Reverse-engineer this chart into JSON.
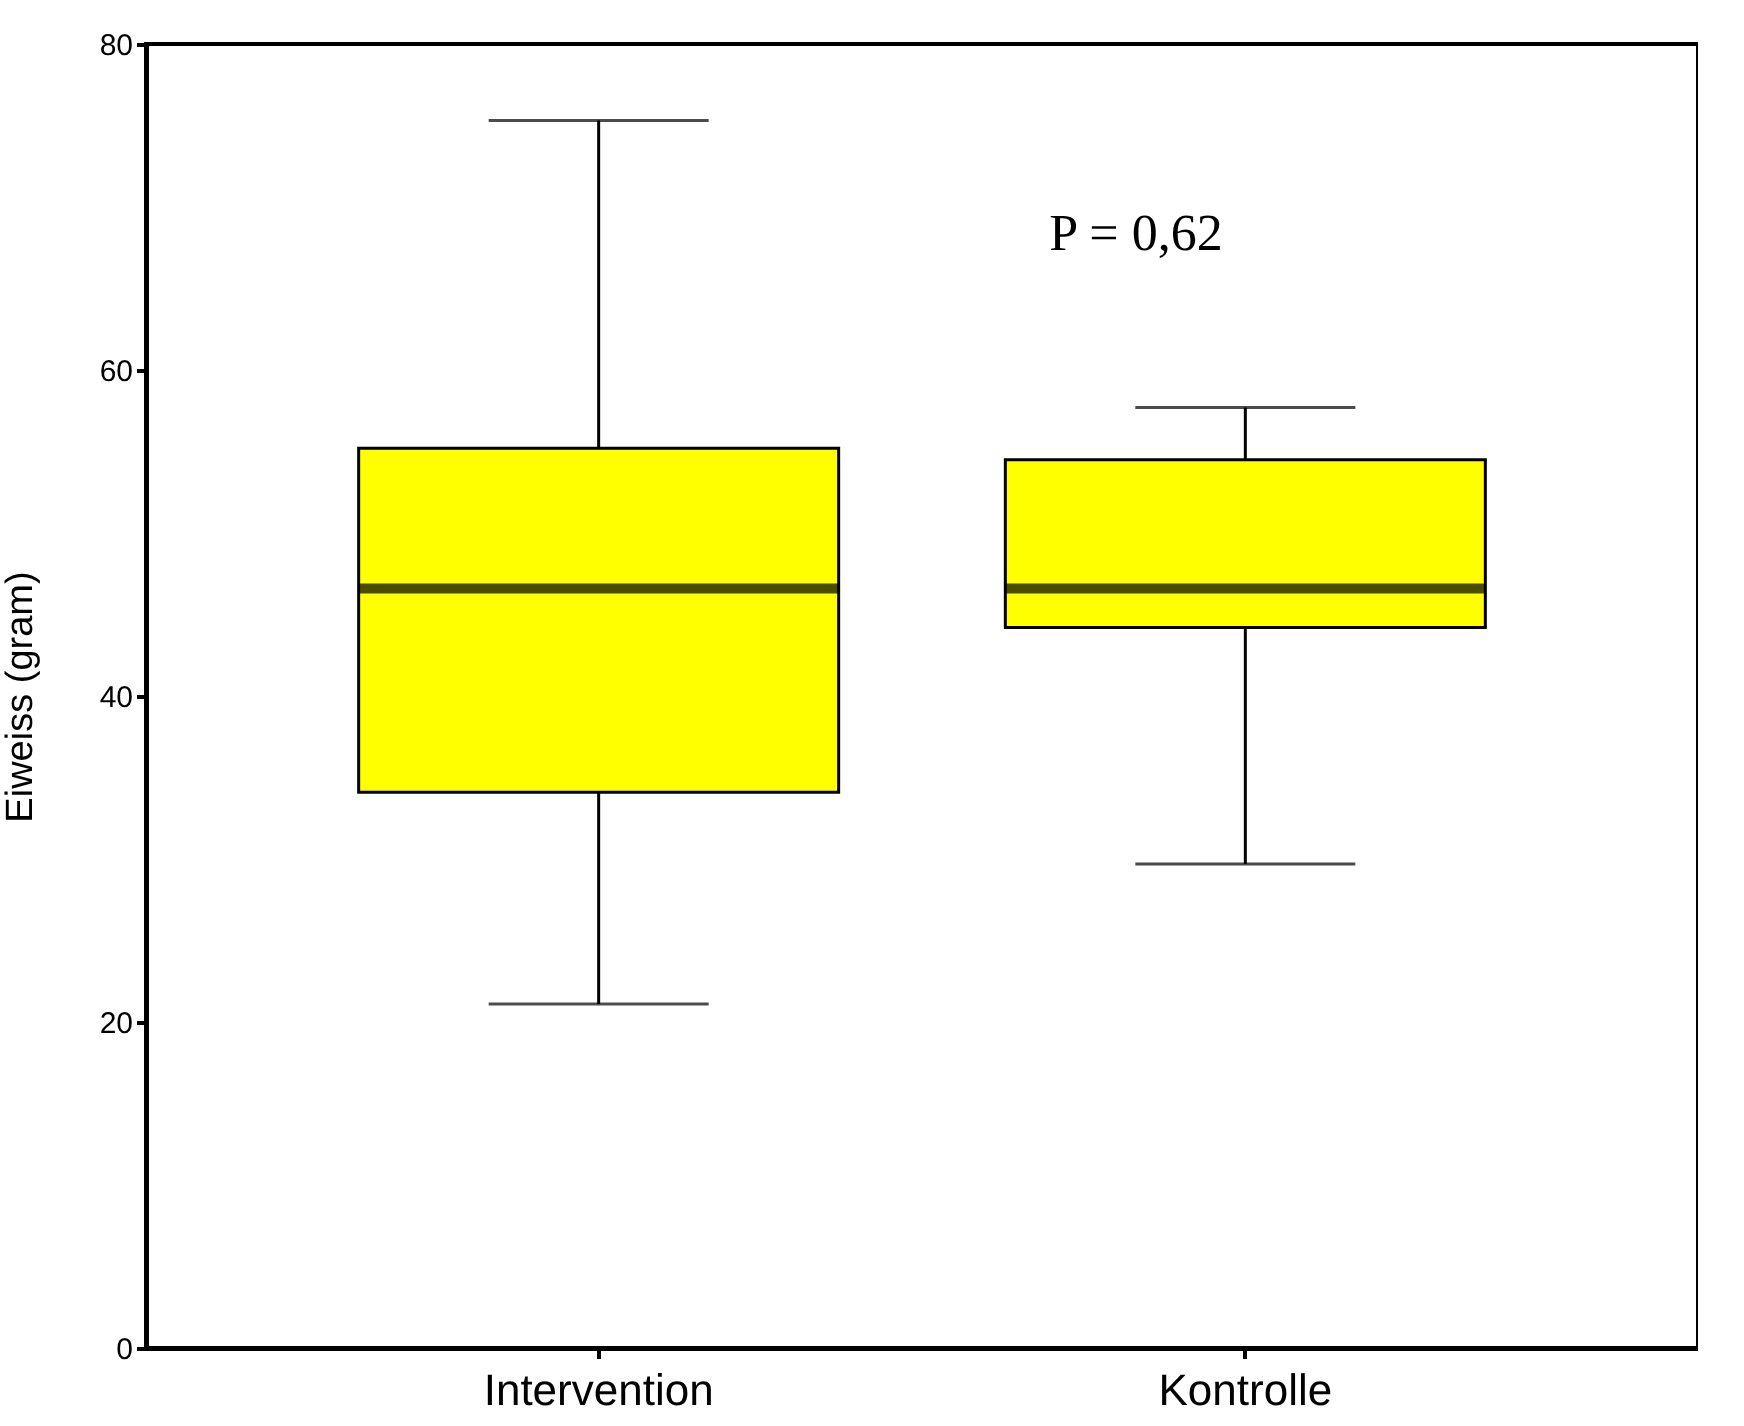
{
  "chart_data": {
    "type": "box",
    "ylabel": "Eiweiss (gram)",
    "categories": [
      "Intervention",
      "Kontrolle"
    ],
    "series": [
      {
        "color": "#ffff00",
        "boxes": [
          {
            "low": 21.1,
            "q1": 34.1,
            "median": 46.6,
            "q3": 55.2,
            "high": 75.3
          },
          {
            "low": 29.7,
            "q1": 44.2,
            "median": 46.6,
            "q3": 54.5,
            "high": 57.7
          }
        ]
      }
    ],
    "ylim": [
      0,
      80
    ],
    "yticks": [
      0,
      20,
      40,
      60,
      80
    ],
    "grid": false,
    "annotations": [
      "P = 0,62"
    ]
  }
}
